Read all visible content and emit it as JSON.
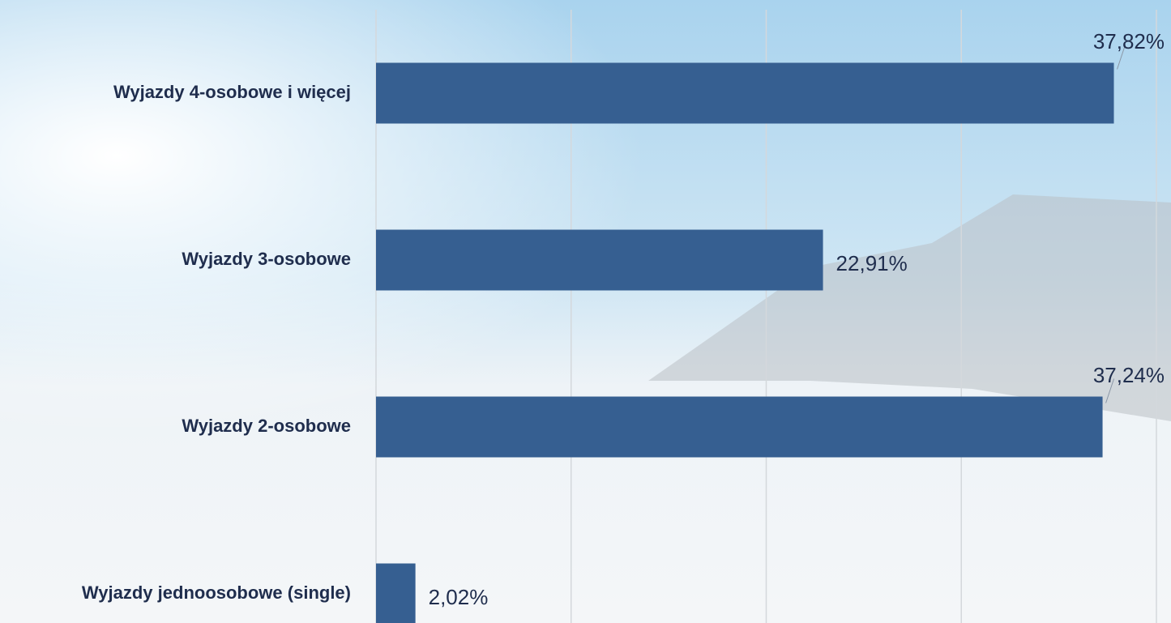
{
  "chart_data": {
    "type": "hbar",
    "categories": [
      "Wyjazdy 4-osobowe i więcej",
      "Wyjazdy 3-osobowe",
      "Wyjazdy 2-osobowe",
      "Wyjazdy jednoosobowe (single)"
    ],
    "values": [
      37.82,
      22.91,
      37.24,
      2.02
    ],
    "value_labels": [
      "37,82%",
      "22,91%",
      "37,24%",
      "2,02%"
    ],
    "color": "#365f91",
    "xlim": [
      0,
      40
    ],
    "xticks": [
      0,
      10,
      20,
      30,
      40
    ],
    "grid": true
  }
}
